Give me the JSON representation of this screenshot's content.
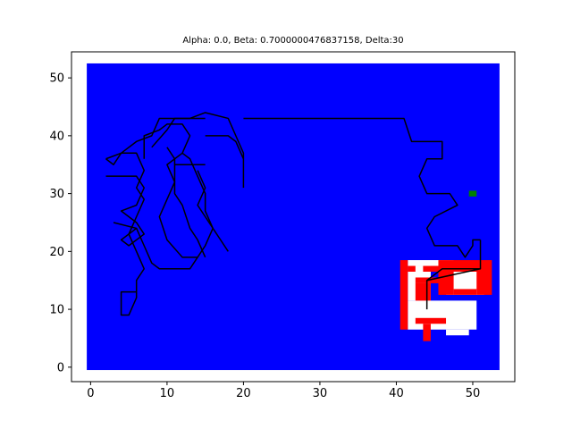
{
  "chart_data": {
    "type": "heatmap",
    "title": "Alpha: 0.0, Beta: 0.7000000476837158, Delta:30",
    "xlabel": "",
    "ylabel": "",
    "xlim": [
      -2.5,
      55.5
    ],
    "ylim": [
      -2.5,
      54.5
    ],
    "xticks": [
      0,
      10,
      20,
      30,
      40,
      50
    ],
    "yticks": [
      0,
      10,
      20,
      30,
      40,
      50
    ],
    "grid": false,
    "background_field": {
      "x_range": [
        -0.5,
        53.5
      ],
      "y_range": [
        -0.5,
        52.5
      ],
      "color": "#0000ff"
    },
    "white_regions": [
      {
        "x": [
          41.5,
          47.5
        ],
        "y": [
          17.5,
          18.5
        ]
      },
      {
        "x": [
          41.5,
          44.5
        ],
        "y": [
          11.5,
          17.5
        ]
      },
      {
        "x": [
          41.5,
          50.5
        ],
        "y": [
          6.5,
          11.5
        ]
      },
      {
        "x": [
          46.5,
          51.5
        ],
        "y": [
          12.5,
          17.5
        ]
      },
      {
        "x": [
          46.5,
          49.5
        ],
        "y": [
          5.5,
          6.5
        ]
      }
    ],
    "red_regions": [
      {
        "x": [
          40.5,
          41.5
        ],
        "y": [
          6.5,
          18.5
        ]
      },
      {
        "x": [
          41.5,
          42.5
        ],
        "y": [
          16.5,
          17.5
        ]
      },
      {
        "x": [
          43.5,
          45.5
        ],
        "y": [
          16.5,
          17.5
        ]
      },
      {
        "x": [
          42.5,
          45.5
        ],
        "y": [
          14.5,
          15.5
        ]
      },
      {
        "x": [
          42.5,
          44.5
        ],
        "y": [
          11.5,
          14.5
        ]
      },
      {
        "x": [
          42.5,
          46.5
        ],
        "y": [
          7.5,
          8.5
        ]
      },
      {
        "x": [
          43.5,
          44.5
        ],
        "y": [
          4.5,
          7.5
        ]
      },
      {
        "x": [
          45.5,
          52.5
        ],
        "y": [
          16.5,
          18.5
        ]
      },
      {
        "x": [
          45.5,
          47.5
        ],
        "y": [
          12.5,
          16.5
        ]
      },
      {
        "x": [
          50.5,
          52.5
        ],
        "y": [
          12.5,
          16.5
        ]
      },
      {
        "x": [
          47.5,
          50.5
        ],
        "y": [
          12.5,
          13.5
        ]
      }
    ],
    "goal_marker": {
      "x": 50,
      "y": 30,
      "color": "#008000"
    },
    "paths": [
      [
        [
          20,
          43
        ],
        [
          41,
          43
        ],
        [
          42,
          39
        ],
        [
          46,
          39
        ],
        [
          46,
          36
        ]
      ],
      [
        [
          46,
          39
        ],
        [
          46,
          36
        ],
        [
          44,
          36
        ],
        [
          43,
          33
        ],
        [
          44,
          30
        ],
        [
          47,
          30
        ],
        [
          48,
          28
        ],
        [
          45,
          26
        ],
        [
          44,
          24
        ],
        [
          45,
          21
        ],
        [
          48,
          21
        ],
        [
          49,
          19
        ],
        [
          50,
          21
        ],
        [
          50,
          22
        ],
        [
          51,
          22
        ]
      ],
      [
        [
          51,
          22
        ],
        [
          51,
          17
        ],
        [
          44,
          15
        ],
        [
          44,
          10
        ]
      ],
      [
        [
          44,
          15
        ],
        [
          46,
          17
        ],
        [
          51,
          17
        ]
      ],
      [
        [
          15,
          43
        ],
        [
          9,
          43
        ],
        [
          8,
          40
        ],
        [
          6,
          39
        ],
        [
          4,
          37
        ],
        [
          3,
          35
        ],
        [
          2,
          36
        ]
      ],
      [
        [
          2,
          36
        ],
        [
          4,
          37
        ],
        [
          6,
          37
        ],
        [
          7,
          34
        ],
        [
          6,
          31
        ],
        [
          7,
          29
        ],
        [
          6,
          26
        ],
        [
          5,
          23
        ],
        [
          6,
          20
        ],
        [
          7,
          17
        ],
        [
          6,
          15
        ],
        [
          6,
          12
        ],
        [
          5,
          9
        ],
        [
          4,
          9
        ],
        [
          4,
          13
        ],
        [
          6,
          13
        ],
        [
          6,
          15
        ]
      ],
      [
        [
          2,
          33
        ],
        [
          6,
          33
        ],
        [
          7,
          31
        ],
        [
          6,
          28
        ],
        [
          4,
          27
        ],
        [
          6,
          25
        ],
        [
          7,
          23
        ],
        [
          5,
          21
        ],
        [
          4,
          22
        ],
        [
          6,
          24
        ],
        [
          3,
          25
        ]
      ],
      [
        [
          7,
          36
        ],
        [
          7,
          40
        ],
        [
          9,
          41
        ],
        [
          10,
          42
        ],
        [
          12,
          42
        ],
        [
          13,
          40
        ],
        [
          12,
          37
        ],
        [
          10,
          35
        ],
        [
          11,
          32
        ],
        [
          10,
          29
        ],
        [
          9,
          26
        ],
        [
          10,
          22
        ],
        [
          12,
          19
        ],
        [
          14,
          19
        ],
        [
          15,
          21
        ],
        [
          16,
          24
        ],
        [
          15,
          26
        ],
        [
          14,
          28
        ],
        [
          15,
          31
        ],
        [
          14,
          34
        ]
      ],
      [
        [
          11,
          35
        ],
        [
          15,
          35
        ]
      ],
      [
        [
          10,
          38
        ],
        [
          11,
          36
        ],
        [
          11,
          30
        ],
        [
          12,
          28
        ],
        [
          13,
          24
        ],
        [
          14,
          22
        ],
        [
          15,
          19
        ]
      ],
      [
        [
          8,
          38
        ],
        [
          10,
          41
        ],
        [
          11,
          43
        ],
        [
          13,
          43
        ],
        [
          15,
          44
        ],
        [
          18,
          43
        ],
        [
          19,
          40
        ],
        [
          20,
          37
        ],
        [
          20,
          31
        ]
      ],
      [
        [
          15,
          40
        ],
        [
          18,
          40
        ],
        [
          19,
          39
        ],
        [
          20,
          36
        ]
      ],
      [
        [
          12,
          37
        ],
        [
          13,
          36
        ],
        [
          14,
          33
        ],
        [
          15,
          30
        ],
        [
          15,
          27
        ],
        [
          16,
          24
        ],
        [
          17,
          22
        ],
        [
          18,
          20
        ]
      ],
      [
        [
          6,
          24
        ],
        [
          7,
          21
        ],
        [
          8,
          18
        ],
        [
          9,
          17
        ],
        [
          12,
          17
        ],
        [
          13,
          17
        ],
        [
          14,
          19
        ]
      ]
    ]
  }
}
